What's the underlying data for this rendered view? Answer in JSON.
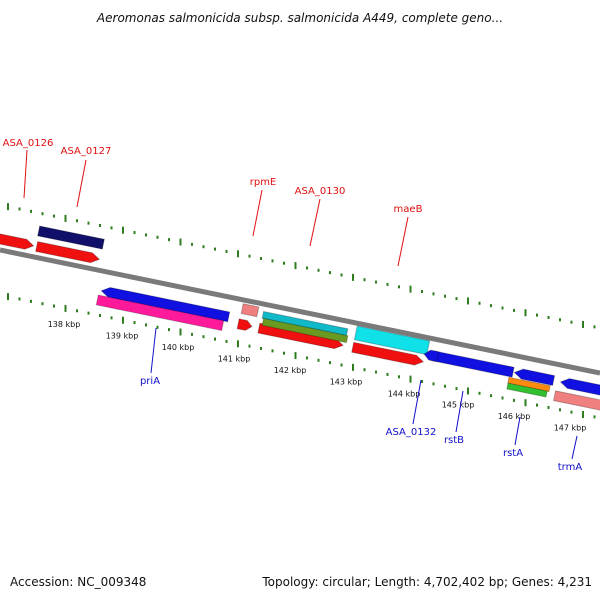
{
  "title": "Aeromonas salmonicida subsp. salmonicida A449, complete geno...",
  "accession": "Accession: NC_009348",
  "topology": "Topology: circular; Length: 4,702,402 bp; Genes: 4,231",
  "colors": {
    "backbone": "#7a7a7a",
    "ticks": "#2e7d1e",
    "forward_label": "#e01010",
    "reverse_label": "#1010c8",
    "red": "#f01010",
    "navy": "#10106a",
    "blue": "#1010e0",
    "pink": "#ff1a9c",
    "salmon": "#f08080",
    "cyan": "#10e0e8",
    "teal": "#10b8c8",
    "olive": "#6a9a20",
    "orange": "#ff8a10",
    "green": "#30c030"
  },
  "scale_ticks": [
    {
      "label": "138 kbp"
    },
    {
      "label": "139 kbp"
    },
    {
      "label": "140 kbp"
    },
    {
      "label": "141 kbp"
    },
    {
      "label": "142 kbp"
    },
    {
      "label": "143 kbp"
    },
    {
      "label": "144 kbp"
    },
    {
      "label": "145 kbp"
    },
    {
      "label": "146 kbp"
    },
    {
      "label": "147 kbp"
    }
  ],
  "forward_labels": [
    "ASA_0126",
    "ASA_0127",
    "rpmE",
    "ASA_0130",
    "maeB"
  ],
  "reverse_labels": [
    "priA",
    "ASA_0132",
    "rstB",
    "rstA",
    "trmA"
  ],
  "features": [
    {
      "name": "ASA_0126",
      "strand": "forward",
      "color": "red",
      "shape": "arrow-right"
    },
    {
      "name": "ASA_0127",
      "strand": "forward",
      "color": "red",
      "shape": "arrow-right"
    },
    {
      "name": "ASA_0127 (related)",
      "strand": "forward",
      "color": "navy",
      "shape": "bar"
    },
    {
      "name": "rpmE",
      "strand": "forward",
      "color": "red",
      "shape": "arrow-right"
    },
    {
      "name": "rpmE (related)",
      "strand": "forward",
      "color": "salmon",
      "shape": "bar"
    },
    {
      "name": "ASA_0130",
      "strand": "forward",
      "color": "red",
      "shape": "arrow-right"
    },
    {
      "name": "ASA_0130 (related)",
      "strand": "forward",
      "color": "teal",
      "shape": "bar"
    },
    {
      "name": "ASA_0130 (related 2)",
      "strand": "forward",
      "color": "olive",
      "shape": "bar"
    },
    {
      "name": "maeB",
      "strand": "forward",
      "color": "red",
      "shape": "arrow-right"
    },
    {
      "name": "maeB (related)",
      "strand": "forward",
      "color": "cyan",
      "shape": "bar"
    },
    {
      "name": "priA",
      "strand": "reverse",
      "color": "blue",
      "shape": "arrow-left"
    },
    {
      "name": "priA (related)",
      "strand": "reverse",
      "color": "pink",
      "shape": "bar"
    },
    {
      "name": "ASA_0132",
      "strand": "reverse",
      "color": "blue",
      "shape": "arrow-left"
    },
    {
      "name": "rstB",
      "strand": "reverse",
      "color": "blue",
      "shape": "arrow-left"
    },
    {
      "name": "rstA",
      "strand": "reverse",
      "color": "blue",
      "shape": "arrow-left"
    },
    {
      "name": "rstA (related)",
      "strand": "reverse",
      "color": "orange",
      "shape": "bar"
    },
    {
      "name": "rstA (related 2)",
      "strand": "reverse",
      "color": "green",
      "shape": "bar"
    },
    {
      "name": "trmA",
      "strand": "reverse",
      "color": "blue",
      "shape": "arrow-left"
    },
    {
      "name": "trmA (related)",
      "strand": "reverse",
      "color": "salmon",
      "shape": "bar"
    }
  ]
}
